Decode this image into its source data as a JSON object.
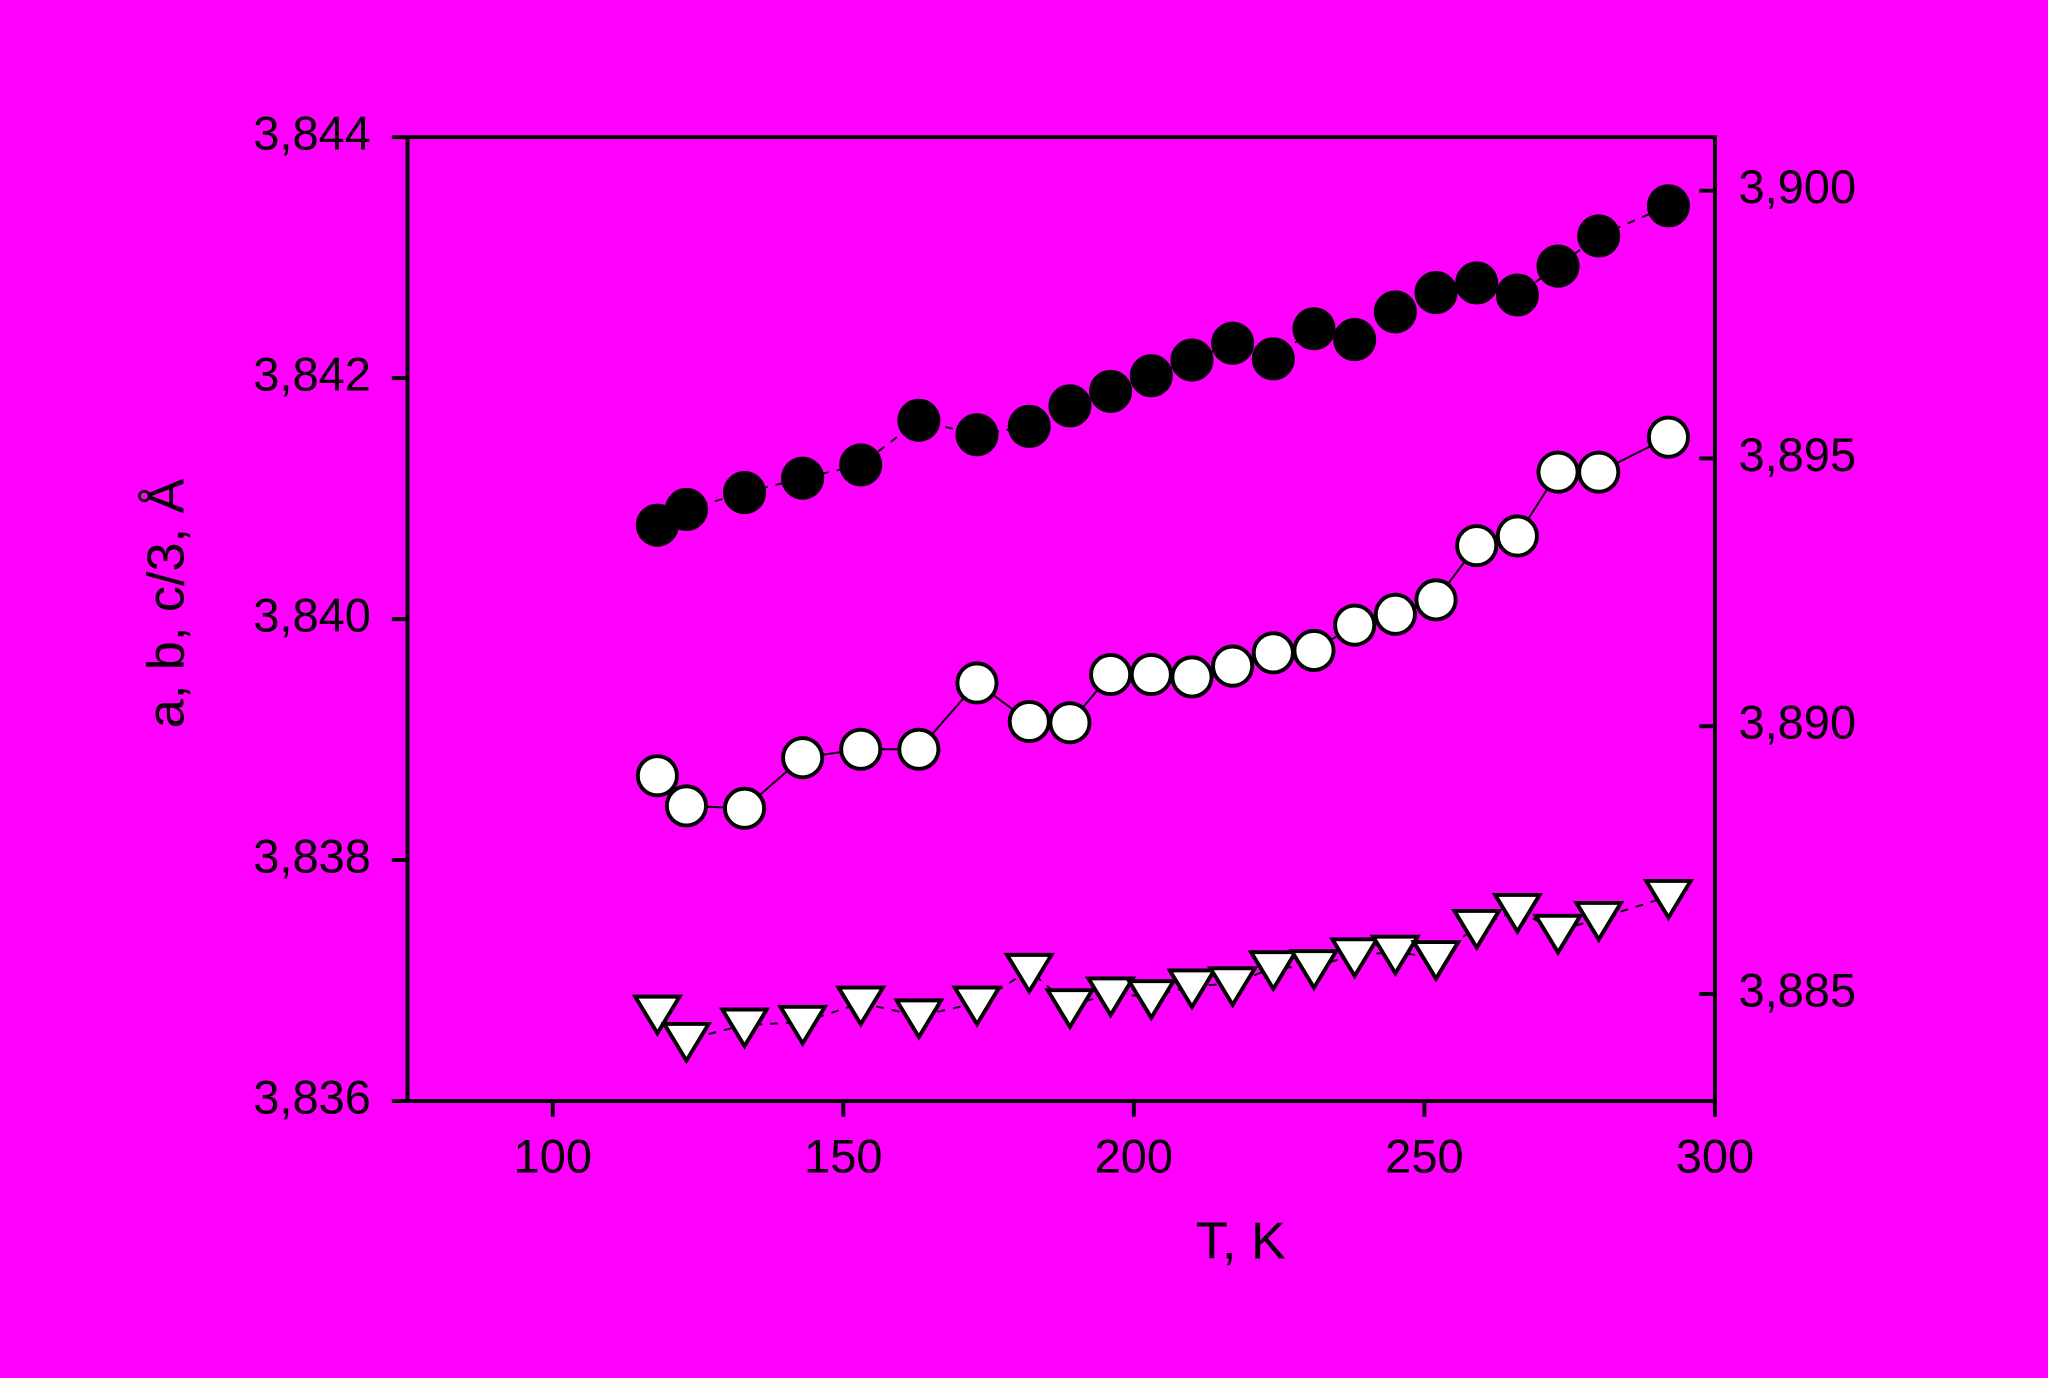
{
  "chart_data": {
    "type": "scatter",
    "x_label": "T, K",
    "y_label": "a, b, c/3,  Å",
    "xlim": [
      75,
      300
    ],
    "xticks": [
      100,
      150,
      200,
      250,
      300
    ],
    "ylim": [
      3.836,
      3.844
    ],
    "yticks": [
      {
        "value": 3.836,
        "label": "3,836"
      },
      {
        "value": 3.838,
        "label": "3,838"
      },
      {
        "value": 3.84,
        "label": "3,840"
      },
      {
        "value": 3.842,
        "label": "3,842"
      },
      {
        "value": 3.844,
        "label": "3,844"
      }
    ],
    "y2lim": [
      3.883,
      3.901
    ],
    "y2ticks": [
      {
        "value": 3.885,
        "label": "3,885"
      },
      {
        "value": 3.89,
        "label": "3,890"
      },
      {
        "value": 3.895,
        "label": "3,895"
      },
      {
        "value": 3.9,
        "label": "3,900"
      }
    ],
    "x": [
      118,
      123,
      133,
      143,
      153,
      163,
      173,
      182,
      189,
      196,
      203,
      210,
      217,
      224,
      231,
      238,
      245,
      252,
      259,
      266,
      273,
      280,
      292
    ],
    "series": [
      {
        "marker": "filled-circle",
        "color": "#000000",
        "line": "dashed",
        "values": [
          3.84078,
          3.84091,
          3.84105,
          3.84117,
          3.84128,
          3.84165,
          3.84153,
          3.8416,
          3.84177,
          3.84189,
          3.84202,
          3.84215,
          3.84229,
          3.84216,
          3.84241,
          3.84232,
          3.84255,
          3.84271,
          3.84279,
          3.84269,
          3.84293,
          3.84318,
          3.84343
        ]
      },
      {
        "marker": "open-circle",
        "color": "#ffffff",
        "line": "solid",
        "values": [
          3.8387,
          3.83845,
          3.83843,
          3.83885,
          3.83892,
          3.83892,
          3.83947,
          3.83915,
          3.83914,
          3.83954,
          3.83954,
          3.83952,
          3.83961,
          3.83972,
          3.83974,
          3.83995,
          3.84004,
          3.84016,
          3.84061,
          3.84069,
          3.84122,
          3.84122,
          3.84151
        ]
      },
      {
        "marker": "open-triangle-down",
        "color": "#ffffff",
        "line": "dashed",
        "axis": "y2",
        "values": [
          3.88466,
          3.88415,
          3.88442,
          3.88447,
          3.88483,
          3.88459,
          3.88483,
          3.88544,
          3.88478,
          3.885,
          3.88495,
          3.88515,
          3.88519,
          3.88549,
          3.88551,
          3.88573,
          3.88578,
          3.88568,
          3.88626,
          3.88656,
          3.88617,
          3.88641,
          3.88682
        ]
      }
    ]
  }
}
